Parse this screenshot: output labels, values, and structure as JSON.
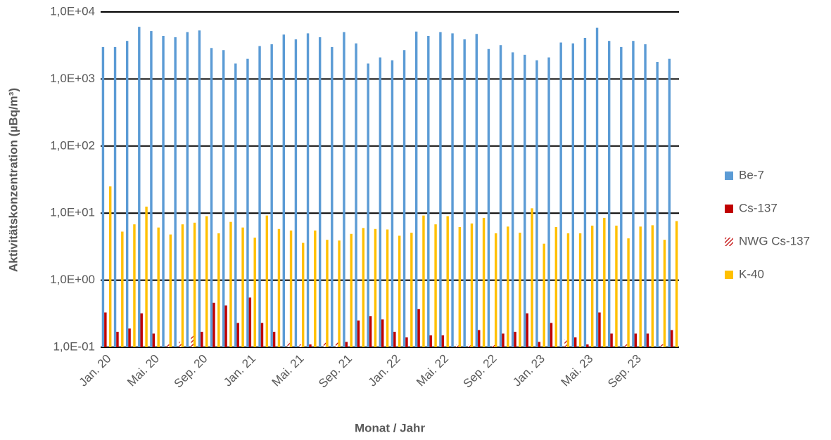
{
  "chart_data": {
    "type": "bar",
    "log_scale": true,
    "grid": true,
    "legend": "right",
    "ylabel": "Aktivitätskonzentration (µBq/m³)",
    "xlabel": "Monat / Jahr",
    "categories": [
      "Jan. 20",
      null,
      null,
      null,
      "Mai. 20",
      null,
      null,
      null,
      "Sep. 20",
      null,
      null,
      null,
      "Jan. 21",
      null,
      null,
      null,
      "Mai. 21",
      null,
      null,
      null,
      "Sep. 21",
      null,
      null,
      null,
      "Jan. 22",
      null,
      null,
      null,
      "Mai. 22",
      null,
      null,
      null,
      "Sep. 22",
      null,
      null,
      null,
      "Jan. 23",
      null,
      null,
      null,
      "Mai. 23",
      null,
      null,
      null,
      "Sep. 23",
      null,
      null,
      null
    ],
    "ylim": [
      0.1,
      10000
    ],
    "yticks": [
      {
        "value": 0.1,
        "label": "1,0E-01"
      },
      {
        "value": 1,
        "label": "1,0E+00"
      },
      {
        "value": 10,
        "label": "1,0E+01"
      },
      {
        "value": 100,
        "label": "1,0E+02"
      },
      {
        "value": 1000,
        "label": "1,0E+03"
      },
      {
        "value": 10000,
        "label": "1,0E+04"
      }
    ],
    "series": [
      {
        "name": "Be-7",
        "color": "#5b9bd5",
        "values": [
          3000,
          3000,
          3700,
          6000,
          5200,
          4400,
          4200,
          5000,
          5300,
          2900,
          2700,
          1700,
          2000,
          3100,
          3300,
          4600,
          3900,
          4800,
          4200,
          3000,
          5000,
          3400,
          1700,
          2100,
          1900,
          2700,
          5100,
          4400,
          5000,
          4800,
          3900,
          4700,
          2800,
          3200,
          2500,
          2300,
          1900,
          2100,
          3500,
          3400,
          4100,
          5800,
          3700,
          3000,
          3700,
          3300,
          1800,
          2000
        ]
      },
      {
        "name": "Cs-137",
        "color": "#c00000",
        "values": [
          0.33,
          0.17,
          0.19,
          0.32,
          0.16,
          null,
          null,
          null,
          0.17,
          0.46,
          0.42,
          0.23,
          0.55,
          0.23,
          0.17,
          null,
          null,
          0.11,
          null,
          null,
          0.12,
          0.25,
          0.29,
          0.26,
          0.17,
          0.14,
          0.37,
          0.15,
          0.15,
          null,
          null,
          0.18,
          null,
          0.16,
          0.17,
          0.32,
          0.12,
          0.23,
          null,
          0.14,
          0.11,
          0.33,
          0.16,
          null,
          0.16,
          0.16,
          null,
          0.18
        ]
      },
      {
        "name": "NWG Cs-137",
        "color": "#c00000",
        "hatched": true,
        "values": [
          null,
          null,
          null,
          null,
          null,
          0.11,
          0.12,
          0.15,
          null,
          null,
          null,
          null,
          null,
          null,
          null,
          0.12,
          0.11,
          null,
          0.12,
          0.12,
          null,
          null,
          null,
          null,
          null,
          null,
          null,
          null,
          null,
          0.11,
          0.11,
          null,
          0.11,
          null,
          null,
          null,
          null,
          null,
          0.13,
          null,
          null,
          null,
          null,
          0.11,
          null,
          null,
          0.11,
          null
        ]
      },
      {
        "name": "K-40",
        "color": "#ffc000",
        "values": [
          25,
          5.3,
          6.8,
          12.5,
          6.1,
          4.8,
          6.8,
          7.2,
          9,
          5,
          7.4,
          6.1,
          4.3,
          9.2,
          5.8,
          5.5,
          3.6,
          5.5,
          4.0,
          3.9,
          4.9,
          6,
          5.8,
          5.7,
          4.6,
          5.1,
          9.2,
          6.8,
          9,
          6.2,
          7,
          8.5,
          5,
          6.3,
          5.1,
          11.8,
          3.5,
          6.2,
          5,
          5,
          6.5,
          8.5,
          6.5,
          4.2,
          6.3,
          6.6,
          4.0,
          7.6
        ]
      }
    ]
  }
}
